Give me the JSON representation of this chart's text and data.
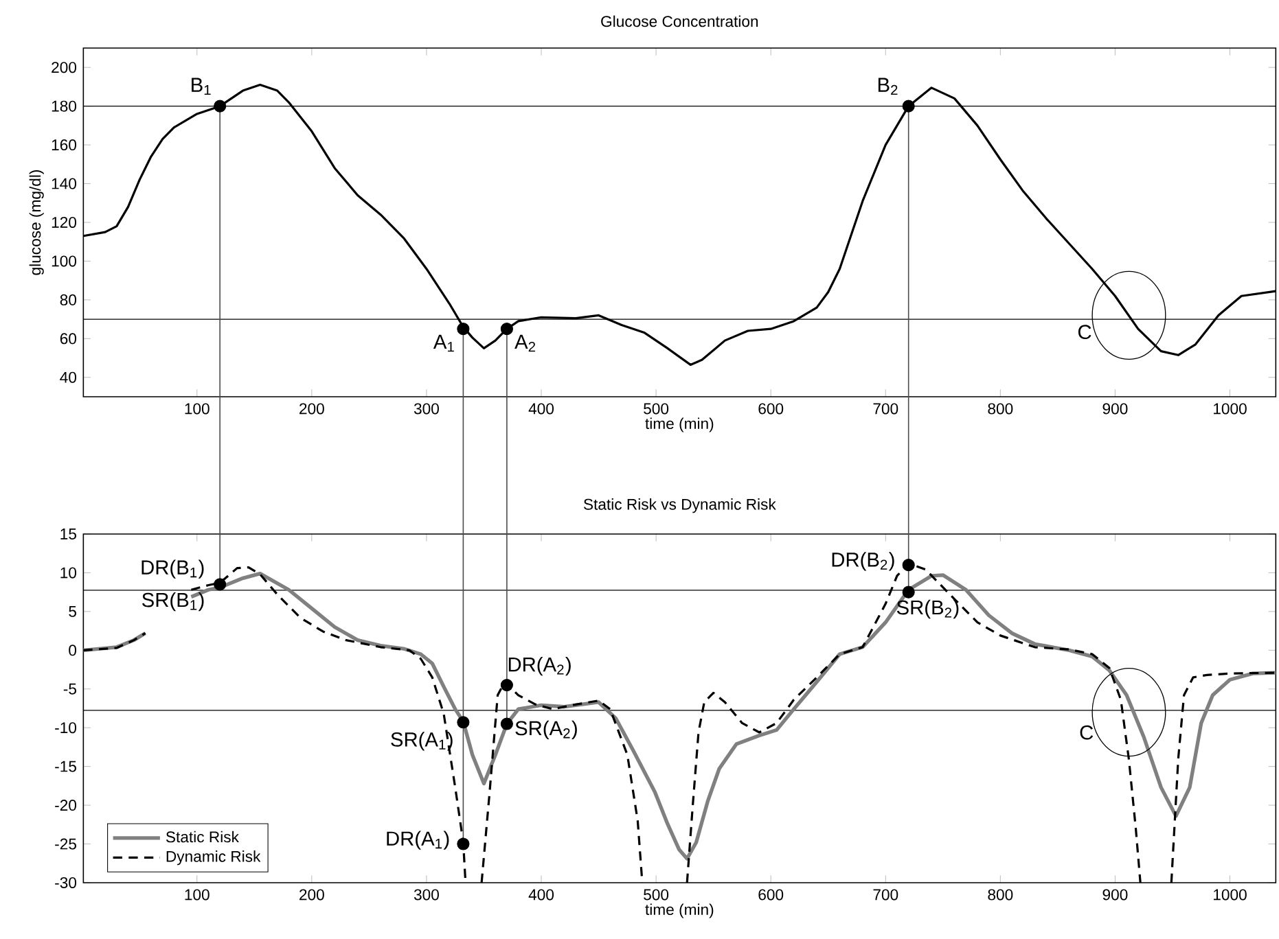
{
  "chart_data": [
    {
      "type": "line",
      "title": "Glucose Concentration",
      "xlabel": "time (min)",
      "ylabel": "glucose (mg/dl)",
      "xlim": [
        1,
        1040
      ],
      "ylim": [
        30,
        210
      ],
      "xticks": [
        100,
        200,
        300,
        400,
        500,
        600,
        700,
        800,
        900,
        1000
      ],
      "yticks": [
        40,
        60,
        80,
        100,
        120,
        140,
        160,
        180,
        200
      ],
      "series": [
        {
          "type": "line",
          "color": "#000000",
          "line_style": "solid",
          "x": [
            1,
            20,
            30,
            40,
            50,
            60,
            70,
            80,
            100,
            120,
            140,
            155,
            170,
            180,
            200,
            220,
            240,
            260,
            280,
            300,
            320,
            332,
            340,
            350,
            360,
            370,
            380,
            400,
            430,
            450,
            470,
            490,
            510,
            530,
            540,
            560,
            580,
            600,
            620,
            640,
            650,
            660,
            680,
            700,
            720,
            740,
            760,
            780,
            800,
            820,
            840,
            860,
            880,
            900,
            920,
            940,
            955,
            970,
            990,
            1010,
            1040
          ],
          "values": [
            113,
            115,
            118,
            128,
            142,
            154,
            163,
            169,
            176,
            180,
            188,
            191,
            188,
            182,
            167,
            148,
            134,
            124,
            112,
            96,
            78,
            66,
            60.5,
            55,
            59,
            65,
            69,
            71,
            70.5,
            72,
            67,
            63,
            55,
            46.5,
            49,
            59,
            64,
            65,
            69,
            76,
            84,
            96,
            131,
            160,
            180,
            189.5,
            184,
            170,
            152.5,
            136,
            122,
            109,
            96,
            82,
            65,
            53.5,
            51.5,
            57,
            72,
            82,
            84.5
          ]
        },
        {
          "type": "scatter",
          "color": "#000000",
          "marker": "circle",
          "x": [
            120,
            332,
            370,
            720
          ],
          "values": [
            180,
            65,
            65,
            180
          ],
          "errors": [
            [
              30,
              180
            ],
            [
              30,
              65
            ],
            [
              30,
              65
            ],
            [
              30,
              180
            ]
          ]
        }
      ],
      "ref_lines": [
        {
          "axis": "y",
          "value": 180,
          "color": "#000000"
        },
        {
          "axis": "y",
          "value": 70,
          "color": "#000000"
        }
      ],
      "annotations": [
        {
          "text": "B$_{1}$",
          "x": 120,
          "y": 180
        },
        {
          "text": "A$_{1}$",
          "x": 332,
          "y": 65
        },
        {
          "text": "A$_{2}$",
          "x": 370,
          "y": 65
        },
        {
          "text": "B$_{2}$",
          "x": 720,
          "y": 180
        },
        {
          "text": "C",
          "x": 912,
          "y": 72
        }
      ]
    },
    {
      "type": "line",
      "title": "Static Risk vs Dynamic Risk",
      "xlabel": "time (min)",
      "xlim": [
        1,
        1040
      ],
      "ylim": [
        -30,
        15
      ],
      "xticks": [
        100,
        200,
        300,
        400,
        500,
        600,
        700,
        800,
        900,
        1000
      ],
      "yticks": [
        -30,
        -25,
        -20,
        -15,
        -10,
        -5,
        0,
        5,
        10,
        15
      ],
      "legend": "bottom left",
      "series": [
        {
          "type": "line",
          "name": "Static Risk",
          "color": "#808080",
          "line_style": "solid",
          "x": [
            1,
            30,
            45,
            55,
            70,
            85,
            95,
            110,
            120,
            140,
            155,
            180,
            200,
            220,
            240,
            260,
            280,
            295,
            305,
            315,
            325,
            332,
            340,
            350,
            360,
            370,
            380,
            400,
            420,
            450,
            465,
            480,
            499,
            510,
            520,
            527,
            535,
            545,
            555,
            570,
            590,
            605,
            620,
            640,
            660,
            680,
            700,
            720,
            740,
            750,
            770,
            790,
            810,
            830,
            860,
            880,
            895,
            910,
            925,
            940,
            953,
            965,
            975,
            985,
            1000,
            1020,
            1040
          ],
          "values": [
            0,
            0.4,
            1.3,
            2.2,
            null,
            null,
            6.9,
            7.8,
            8.1,
            9.3,
            9.9,
            7.8,
            5.4,
            3,
            1.3,
            0.6,
            0.2,
            -0.5,
            -1.7,
            -4.7,
            -7.6,
            -9.2,
            -13.5,
            -17.2,
            -13.5,
            -9.5,
            -7.6,
            -7.1,
            -7.3,
            -6.7,
            -8.8,
            -12.9,
            -18.3,
            -22.4,
            -25.7,
            -26.9,
            -24.8,
            -19.5,
            -15.3,
            -12.1,
            -11,
            -10.3,
            -7.6,
            -4.1,
            -0.5,
            0.4,
            3.6,
            7.8,
            9.6,
            9.7,
            7.8,
            4.5,
            2.2,
            0.8,
            0,
            -0.8,
            -2.6,
            -5.8,
            -11.2,
            -17.7,
            -21.4,
            -17.7,
            -9.4,
            -5.8,
            -3.8,
            -3,
            -2.9
          ]
        },
        {
          "type": "line",
          "name": "Dynamic Risk",
          "color": "#000000",
          "line_style": "dashed",
          "x": [
            1,
            30,
            45,
            55,
            70,
            85,
            95,
            110,
            120,
            135,
            145,
            155,
            170,
            190,
            210,
            230,
            260,
            285,
            295,
            305,
            315,
            325,
            332,
            334,
            341,
            348,
            355,
            362,
            368,
            380,
            395,
            410,
            430,
            450,
            460,
            475,
            484,
            488,
            508,
            527,
            532,
            537,
            542,
            550,
            560,
            575,
            590,
            605,
            620,
            640,
            660,
            680,
            700,
            710,
            720,
            735,
            760,
            780,
            800,
            830,
            860,
            880,
            895,
            905,
            912,
            918,
            922,
            935,
            949,
            955,
            960,
            968,
            980,
            1000,
            1040
          ],
          "values": [
            0,
            0.3,
            1.3,
            2.2,
            null,
            null,
            7.8,
            8.4,
            8.7,
            10.6,
            10.7,
            9.8,
            7.2,
            4.2,
            2.4,
            1.3,
            0.4,
            0,
            -1.1,
            -3.5,
            -8.2,
            -17.7,
            -24.8,
            -30,
            null,
            -30,
            -18.3,
            -5.8,
            -4.1,
            -5.8,
            -7,
            -7.6,
            -7,
            -6.5,
            -7.6,
            -13.5,
            -22,
            -30,
            null,
            -30,
            -20,
            -10.6,
            -6.7,
            -5.5,
            -6.7,
            -9.4,
            -10.6,
            -9.4,
            -6.4,
            -3.5,
            -0.5,
            0.4,
            6,
            9.6,
            11.2,
            10.4,
            6.6,
            3.6,
            1.9,
            0.4,
            0.1,
            -0.5,
            -2.3,
            -6.4,
            -14.1,
            -23,
            -30,
            null,
            -30,
            -14,
            -5.8,
            -3.5,
            -3.2,
            -3,
            -2.9
          ]
        },
        {
          "type": "scatter",
          "color": "#000000",
          "marker": "circle",
          "x": [
            120,
            332,
            332,
            370,
            370,
            720,
            720
          ],
          "values": [
            8.5,
            -9.3,
            -25,
            -4.5,
            -9.5,
            11,
            7.5
          ],
          "errors": [
            [
              8.5,
              15
            ],
            null,
            [
              -25,
              15
            ],
            null,
            [
              -9.5,
              15
            ],
            null,
            [
              7.5,
              15
            ]
          ]
        }
      ],
      "ref_lines": [
        {
          "axis": "y",
          "value": 7.75,
          "color": "#000000"
        },
        {
          "axis": "y",
          "value": -7.75,
          "color": "#000000"
        }
      ],
      "annotations": [
        {
          "text": "DR(B$_{1}$)",
          "x": 120,
          "y": 8.5
        },
        {
          "text": "SR(B$_{1}$)",
          "x": 120,
          "y": 8
        },
        {
          "text": "SR(A$_{1}$)",
          "x": 332,
          "y": -9.3
        },
        {
          "text": "DR(A$_{1}$)",
          "x": 332,
          "y": -25
        },
        {
          "text": "DR(A$_{2}$)",
          "x": 370,
          "y": -4.5
        },
        {
          "text": "SR(A$_{2}$)",
          "x": 370,
          "y": -9.5
        },
        {
          "text": "DR(B$_{2}$)",
          "x": 720,
          "y": 11
        },
        {
          "text": "SR(B$_{2}$)",
          "x": 720,
          "y": 7.5
        },
        {
          "text": "C",
          "x": 912,
          "y": -8
        }
      ]
    }
  ]
}
